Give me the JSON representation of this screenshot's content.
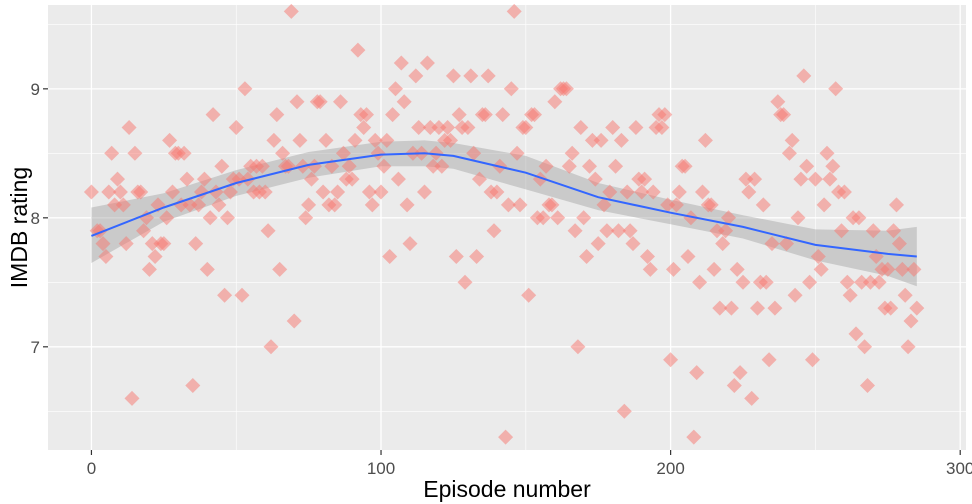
{
  "chart_data": {
    "type": "scatter",
    "title": "",
    "xlabel": "Episode number",
    "ylabel": "IMDB rating",
    "xlim": [
      -15,
      302
    ],
    "ylim": [
      6.2,
      9.65
    ],
    "x_ticks": [
      0,
      100,
      200,
      300
    ],
    "y_ticks": [
      7,
      8,
      9
    ],
    "x_tick_labels": [
      "0",
      "100",
      "200",
      "300"
    ],
    "y_tick_labels": [
      "7",
      "8",
      "9"
    ],
    "grid": true,
    "legend": "none",
    "colors": {
      "points": "#f8766d",
      "smooth_line": "#3366ff",
      "ribbon": "#999999",
      "panel": "#ebebeb",
      "grid": "#ffffff"
    },
    "points": [
      [
        0,
        8.2
      ],
      [
        2,
        7.9
      ],
      [
        3,
        7.9
      ],
      [
        4,
        7.8
      ],
      [
        5,
        7.7
      ],
      [
        6,
        8.2
      ],
      [
        7,
        8.5
      ],
      [
        8,
        8.1
      ],
      [
        9,
        8.3
      ],
      [
        10,
        8.2
      ],
      [
        11,
        8.1
      ],
      [
        12,
        7.8
      ],
      [
        13,
        8.7
      ],
      [
        14,
        6.6
      ],
      [
        15,
        8.5
      ],
      [
        16,
        8.2
      ],
      [
        17,
        8.2
      ],
      [
        18,
        7.9
      ],
      [
        19,
        8.0
      ],
      [
        20,
        7.6
      ],
      [
        21,
        7.8
      ],
      [
        22,
        7.7
      ],
      [
        23,
        8.1
      ],
      [
        24,
        7.8
      ],
      [
        25,
        7.8
      ],
      [
        26,
        8.0
      ],
      [
        27,
        8.6
      ],
      [
        28,
        8.2
      ],
      [
        29,
        8.5
      ],
      [
        30,
        8.5
      ],
      [
        31,
        8.1
      ],
      [
        32,
        8.5
      ],
      [
        33,
        8.3
      ],
      [
        34,
        8.1
      ],
      [
        35,
        6.7
      ],
      [
        36,
        7.8
      ],
      [
        37,
        8.1
      ],
      [
        38,
        8.2
      ],
      [
        39,
        8.3
      ],
      [
        40,
        7.6
      ],
      [
        41,
        8.0
      ],
      [
        42,
        8.8
      ],
      [
        43,
        8.2
      ],
      [
        44,
        8.1
      ],
      [
        45,
        8.4
      ],
      [
        46,
        7.4
      ],
      [
        47,
        8.0
      ],
      [
        48,
        8.2
      ],
      [
        49,
        8.3
      ],
      [
        50,
        8.7
      ],
      [
        51,
        8.3
      ],
      [
        52,
        7.4
      ],
      [
        53,
        9.0
      ],
      [
        54,
        8.3
      ],
      [
        55,
        8.4
      ],
      [
        56,
        8.2
      ],
      [
        57,
        8.4
      ],
      [
        58,
        8.2
      ],
      [
        59,
        8.4
      ],
      [
        60,
        8.2
      ],
      [
        61,
        7.9
      ],
      [
        62,
        7.0
      ],
      [
        63,
        8.6
      ],
      [
        64,
        8.8
      ],
      [
        65,
        7.6
      ],
      [
        66,
        8.5
      ],
      [
        67,
        8.4
      ],
      [
        68,
        8.4
      ],
      [
        69,
        9.6
      ],
      [
        70,
        7.2
      ],
      [
        71,
        8.9
      ],
      [
        72,
        8.6
      ],
      [
        73,
        8.4
      ],
      [
        74,
        8.0
      ],
      [
        75,
        8.1
      ],
      [
        76,
        8.3
      ],
      [
        77,
        8.4
      ],
      [
        78,
        8.9
      ],
      [
        79,
        8.9
      ],
      [
        80,
        8.2
      ],
      [
        81,
        8.6
      ],
      [
        82,
        8.1
      ],
      [
        83,
        8.4
      ],
      [
        84,
        8.1
      ],
      [
        85,
        8.2
      ],
      [
        86,
        8.9
      ],
      [
        87,
        8.5
      ],
      [
        88,
        8.3
      ],
      [
        89,
        8.4
      ],
      [
        90,
        8.3
      ],
      [
        91,
        8.6
      ],
      [
        92,
        9.3
      ],
      [
        93,
        8.8
      ],
      [
        94,
        8.7
      ],
      [
        95,
        8.8
      ],
      [
        96,
        8.2
      ],
      [
        97,
        8.1
      ],
      [
        98,
        8.6
      ],
      [
        99,
        8.5
      ],
      [
        100,
        8.2
      ],
      [
        101,
        8.4
      ],
      [
        102,
        8.6
      ],
      [
        103,
        7.7
      ],
      [
        104,
        8.8
      ],
      [
        105,
        9.0
      ],
      [
        106,
        8.3
      ],
      [
        107,
        9.2
      ],
      [
        108,
        8.9
      ],
      [
        109,
        8.1
      ],
      [
        110,
        7.8
      ],
      [
        111,
        8.5
      ],
      [
        112,
        9.1
      ],
      [
        113,
        8.7
      ],
      [
        114,
        8.5
      ],
      [
        115,
        8.2
      ],
      [
        116,
        9.2
      ],
      [
        117,
        8.7
      ],
      [
        118,
        8.4
      ],
      [
        119,
        8.5
      ],
      [
        120,
        8.7
      ],
      [
        121,
        8.4
      ],
      [
        122,
        8.6
      ],
      [
        123,
        8.7
      ],
      [
        124,
        8.6
      ],
      [
        125,
        9.1
      ],
      [
        126,
        7.7
      ],
      [
        127,
        8.8
      ],
      [
        128,
        8.7
      ],
      [
        129,
        7.5
      ],
      [
        130,
        8.7
      ],
      [
        131,
        9.1
      ],
      [
        132,
        8.5
      ],
      [
        133,
        7.7
      ],
      [
        134,
        8.3
      ],
      [
        135,
        8.8
      ],
      [
        136,
        8.8
      ],
      [
        137,
        9.1
      ],
      [
        138,
        8.2
      ],
      [
        139,
        7.9
      ],
      [
        140,
        8.2
      ],
      [
        141,
        8.4
      ],
      [
        142,
        8.8
      ],
      [
        143,
        6.3
      ],
      [
        144,
        8.1
      ],
      [
        145,
        9.0
      ],
      [
        146,
        9.6
      ],
      [
        147,
        8.5
      ],
      [
        148,
        8.1
      ],
      [
        149,
        8.7
      ],
      [
        150,
        8.7
      ],
      [
        151,
        7.4
      ],
      [
        152,
        8.8
      ],
      [
        153,
        8.8
      ],
      [
        154,
        8.0
      ],
      [
        155,
        8.3
      ],
      [
        156,
        8.0
      ],
      [
        157,
        8.4
      ],
      [
        158,
        8.1
      ],
      [
        159,
        8.1
      ],
      [
        160,
        8.9
      ],
      [
        161,
        8.0
      ],
      [
        162,
        9.0
      ],
      [
        163,
        9.0
      ],
      [
        164,
        9.0
      ],
      [
        165,
        8.4
      ],
      [
        166,
        8.5
      ],
      [
        167,
        7.9
      ],
      [
        168,
        7.0
      ],
      [
        169,
        8.7
      ],
      [
        170,
        8.0
      ],
      [
        171,
        7.7
      ],
      [
        172,
        8.4
      ],
      [
        173,
        8.6
      ],
      [
        174,
        8.3
      ],
      [
        175,
        7.8
      ],
      [
        176,
        8.6
      ],
      [
        177,
        8.1
      ],
      [
        178,
        7.9
      ],
      [
        179,
        8.2
      ],
      [
        180,
        8.7
      ],
      [
        181,
        8.4
      ],
      [
        182,
        7.9
      ],
      [
        183,
        8.6
      ],
      [
        184,
        6.5
      ],
      [
        185,
        8.2
      ],
      [
        186,
        7.9
      ],
      [
        187,
        7.8
      ],
      [
        188,
        8.7
      ],
      [
        189,
        8.3
      ],
      [
        190,
        8.2
      ],
      [
        191,
        8.3
      ],
      [
        192,
        7.7
      ],
      [
        193,
        7.6
      ],
      [
        194,
        8.2
      ],
      [
        195,
        8.7
      ],
      [
        196,
        8.8
      ],
      [
        197,
        8.7
      ],
      [
        198,
        8.8
      ],
      [
        199,
        8.1
      ],
      [
        200,
        6.9
      ],
      [
        201,
        7.6
      ],
      [
        202,
        8.1
      ],
      [
        203,
        8.2
      ],
      [
        204,
        8.4
      ],
      [
        205,
        8.4
      ],
      [
        206,
        7.7
      ],
      [
        207,
        8.0
      ],
      [
        208,
        6.3
      ],
      [
        209,
        6.8
      ],
      [
        210,
        7.5
      ],
      [
        211,
        8.2
      ],
      [
        212,
        8.6
      ],
      [
        213,
        8.1
      ],
      [
        214,
        8.1
      ],
      [
        215,
        7.6
      ],
      [
        216,
        7.9
      ],
      [
        217,
        7.3
      ],
      [
        218,
        7.8
      ],
      [
        219,
        7.9
      ],
      [
        220,
        8.0
      ],
      [
        221,
        7.3
      ],
      [
        222,
        6.7
      ],
      [
        223,
        7.6
      ],
      [
        224,
        6.8
      ],
      [
        225,
        7.5
      ],
      [
        226,
        8.3
      ],
      [
        227,
        8.2
      ],
      [
        228,
        6.6
      ],
      [
        229,
        8.3
      ],
      [
        230,
        7.3
      ],
      [
        231,
        7.5
      ],
      [
        232,
        8.1
      ],
      [
        233,
        7.5
      ],
      [
        234,
        6.9
      ],
      [
        235,
        7.8
      ],
      [
        236,
        7.3
      ],
      [
        237,
        8.9
      ],
      [
        238,
        8.8
      ],
      [
        239,
        8.8
      ],
      [
        240,
        7.8
      ],
      [
        241,
        8.5
      ],
      [
        242,
        8.6
      ],
      [
        243,
        7.4
      ],
      [
        244,
        8.0
      ],
      [
        245,
        8.3
      ],
      [
        246,
        9.1
      ],
      [
        247,
        8.4
      ],
      [
        248,
        7.5
      ],
      [
        249,
        6.9
      ],
      [
        250,
        8.3
      ],
      [
        251,
        7.7
      ],
      [
        252,
        7.6
      ],
      [
        253,
        8.1
      ],
      [
        254,
        8.5
      ],
      [
        255,
        8.3
      ],
      [
        256,
        8.4
      ],
      [
        257,
        9.0
      ],
      [
        258,
        8.2
      ],
      [
        259,
        7.9
      ],
      [
        260,
        8.2
      ],
      [
        261,
        7.5
      ],
      [
        262,
        7.4
      ],
      [
        263,
        8.0
      ],
      [
        264,
        7.1
      ],
      [
        265,
        8.0
      ],
      [
        266,
        7.5
      ],
      [
        267,
        7.0
      ],
      [
        268,
        6.7
      ],
      [
        269,
        7.5
      ],
      [
        270,
        7.9
      ],
      [
        271,
        7.7
      ],
      [
        272,
        7.5
      ],
      [
        273,
        7.6
      ],
      [
        274,
        7.3
      ],
      [
        275,
        7.6
      ],
      [
        276,
        7.3
      ],
      [
        277,
        7.9
      ],
      [
        278,
        8.1
      ],
      [
        279,
        7.8
      ],
      [
        280,
        7.6
      ],
      [
        281,
        7.4
      ],
      [
        282,
        7.0
      ],
      [
        283,
        7.2
      ],
      [
        284,
        7.6
      ],
      [
        285,
        7.3
      ]
    ],
    "smooth_line": [
      [
        0,
        7.86
      ],
      [
        25,
        8.08
      ],
      [
        50,
        8.27
      ],
      [
        75,
        8.41
      ],
      [
        100,
        8.49
      ],
      [
        115,
        8.5
      ],
      [
        125,
        8.48
      ],
      [
        150,
        8.35
      ],
      [
        175,
        8.16
      ],
      [
        200,
        8.04
      ],
      [
        225,
        7.93
      ],
      [
        250,
        7.79
      ],
      [
        275,
        7.72
      ],
      [
        285,
        7.7
      ]
    ],
    "ribbon": [
      [
        0,
        7.65,
        8.08
      ],
      [
        25,
        7.97,
        8.19
      ],
      [
        50,
        8.17,
        8.37
      ],
      [
        75,
        8.31,
        8.51
      ],
      [
        100,
        8.4,
        8.59
      ],
      [
        115,
        8.4,
        8.6
      ],
      [
        125,
        8.38,
        8.58
      ],
      [
        150,
        8.22,
        8.48
      ],
      [
        175,
        8.06,
        8.27
      ],
      [
        200,
        7.95,
        8.14
      ],
      [
        225,
        7.84,
        8.02
      ],
      [
        250,
        7.67,
        7.91
      ],
      [
        275,
        7.55,
        7.9
      ],
      [
        285,
        7.47,
        7.93
      ]
    ]
  }
}
